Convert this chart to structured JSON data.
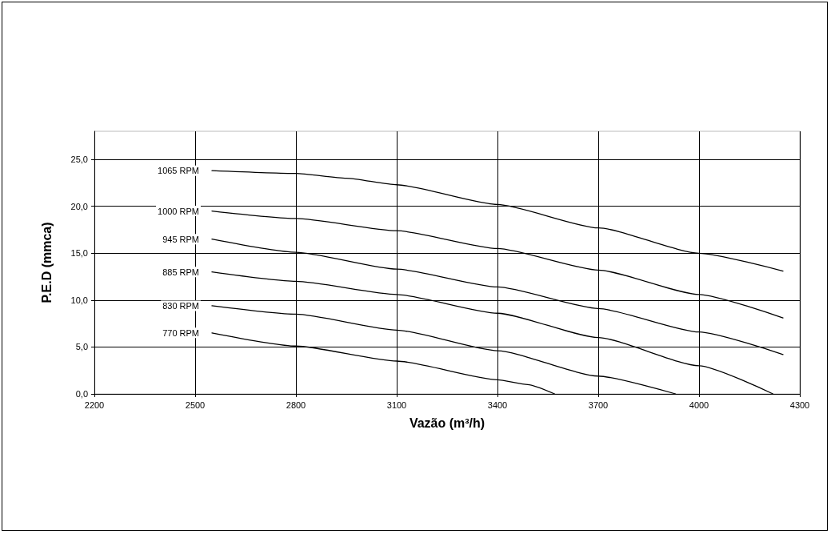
{
  "chart_data": {
    "type": "line",
    "xlabel": "Vazão (m³/h)",
    "ylabel": "P.E.D (mmca)",
    "xlim": [
      2200,
      4300
    ],
    "xticks": [
      2200,
      2500,
      2800,
      3100,
      3400,
      3700,
      4000,
      4300
    ],
    "ylim": [
      0,
      28
    ],
    "yticks": [
      {
        "value": 0,
        "label": "0,0"
      },
      {
        "value": 5,
        "label": "5,0"
      },
      {
        "value": 10,
        "label": "10,0"
      },
      {
        "value": 15,
        "label": "15,0"
      },
      {
        "value": 20,
        "label": "20,0"
      },
      {
        "value": 25,
        "label": "25,0"
      }
    ],
    "grid": true,
    "legend": false,
    "marker": "none",
    "line_style": "solid",
    "series": [
      {
        "name": "1065 RPM",
        "color": "#000000",
        "x": [
          2550,
          2800,
          2950,
          3100,
          3400,
          3700,
          4000,
          4250
        ],
        "values": [
          23.8,
          23.5,
          23.0,
          22.3,
          20.2,
          17.7,
          15.0,
          13.1
        ]
      },
      {
        "name": "1000 RPM",
        "color": "#000000",
        "x": [
          2550,
          2800,
          3100,
          3400,
          3700,
          4000,
          4250
        ],
        "values": [
          19.5,
          18.7,
          17.4,
          15.5,
          13.2,
          10.6,
          8.1
        ]
      },
      {
        "name": "945 RPM",
        "color": "#000000",
        "x": [
          2550,
          2800,
          3100,
          3400,
          3700,
          4000,
          4250
        ],
        "values": [
          16.5,
          15.1,
          13.3,
          11.4,
          9.1,
          6.6,
          4.2
        ]
      },
      {
        "name": "885 RPM",
        "color": "#000000",
        "x": [
          2550,
          2800,
          3100,
          3400,
          3700,
          4000,
          4220
        ],
        "values": [
          13.0,
          12.0,
          10.6,
          8.6,
          6.0,
          3.0,
          0
        ]
      },
      {
        "name": "830 RPM",
        "color": "#000000",
        "x": [
          2550,
          2800,
          3100,
          3400,
          3700,
          3930
        ],
        "values": [
          9.4,
          8.5,
          6.8,
          4.6,
          1.9,
          0
        ]
      },
      {
        "name": "770 RPM",
        "color": "#000000",
        "x": [
          2550,
          2800,
          3100,
          3400,
          3490,
          3570
        ],
        "values": [
          6.5,
          5.1,
          3.5,
          1.5,
          1.0,
          0
        ]
      }
    ]
  }
}
